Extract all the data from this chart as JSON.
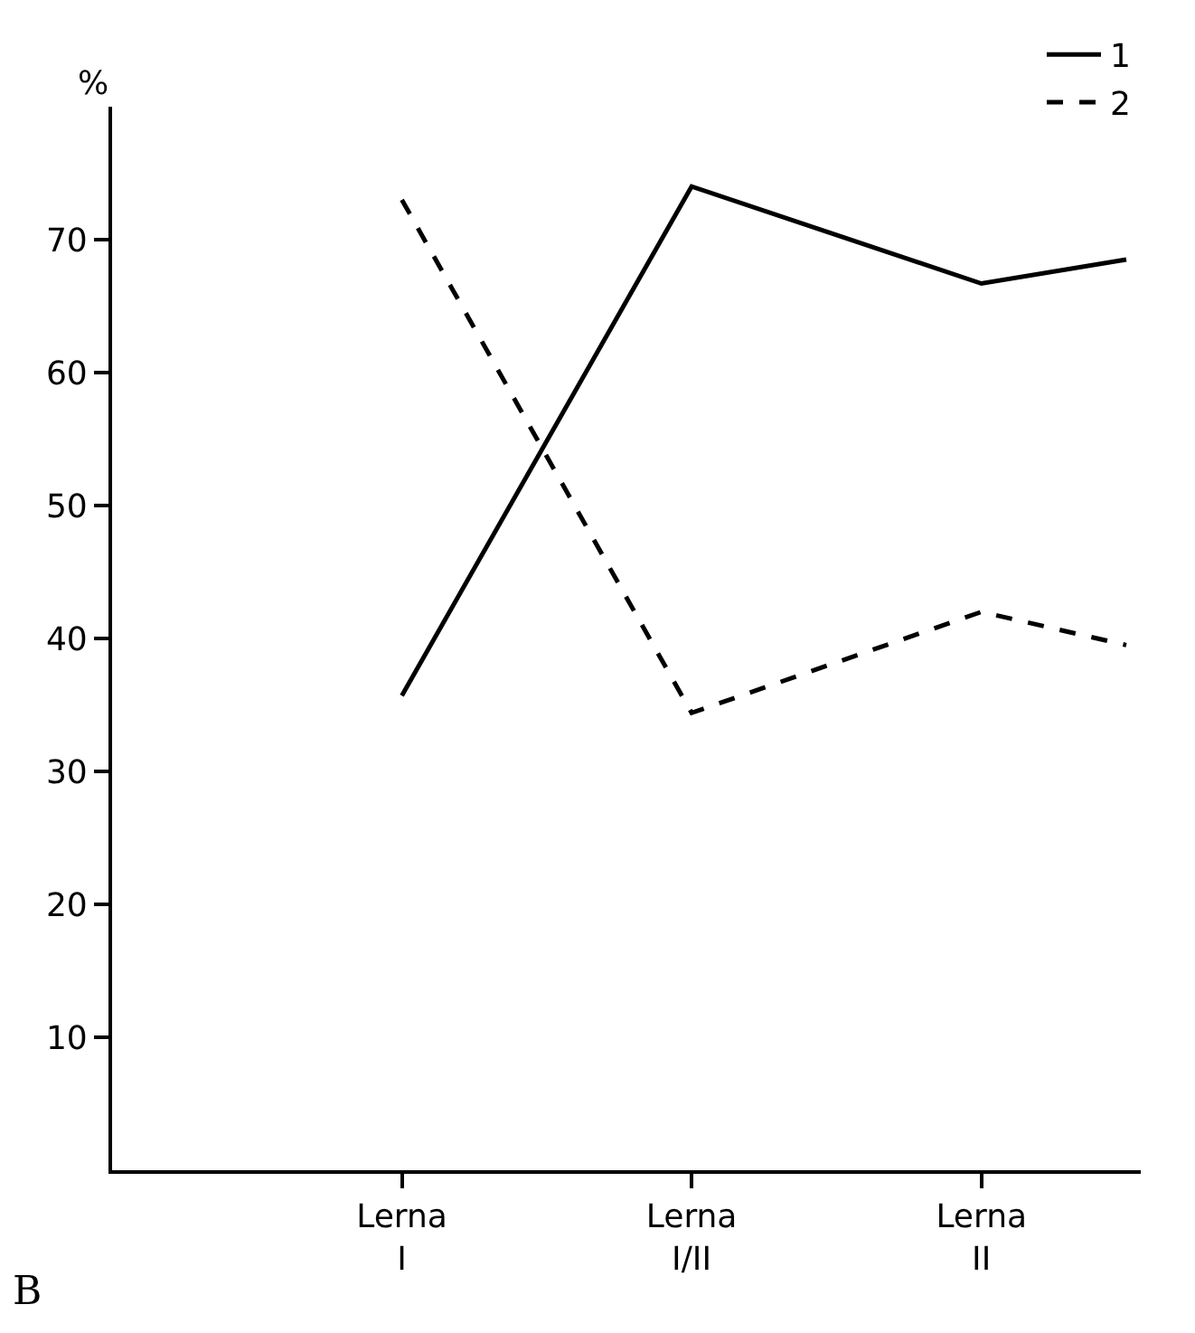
{
  "chart_data": {
    "type": "line",
    "ylabel": "%",
    "categories": [
      null,
      null,
      "Lerna\nI",
      null,
      "Lerna\nI/II",
      null,
      "Lerna\nII",
      null
    ],
    "ylim": [
      0,
      80
    ],
    "yticks": [
      10,
      20,
      30,
      40,
      50,
      60,
      70
    ],
    "series": [
      {
        "name": "1",
        "color": "#000000",
        "line_style": "solid",
        "values": [
          null,
          null,
          35.7,
          null,
          74,
          null,
          66.7,
          68.5
        ]
      },
      {
        "name": "2",
        "color": "#000000",
        "line_style": "dashed",
        "values": [
          null,
          null,
          73,
          null,
          34.4,
          null,
          42,
          39.5
        ]
      }
    ],
    "marker": "none",
    "legend": "top right",
    "annotations": [
      "B"
    ]
  }
}
